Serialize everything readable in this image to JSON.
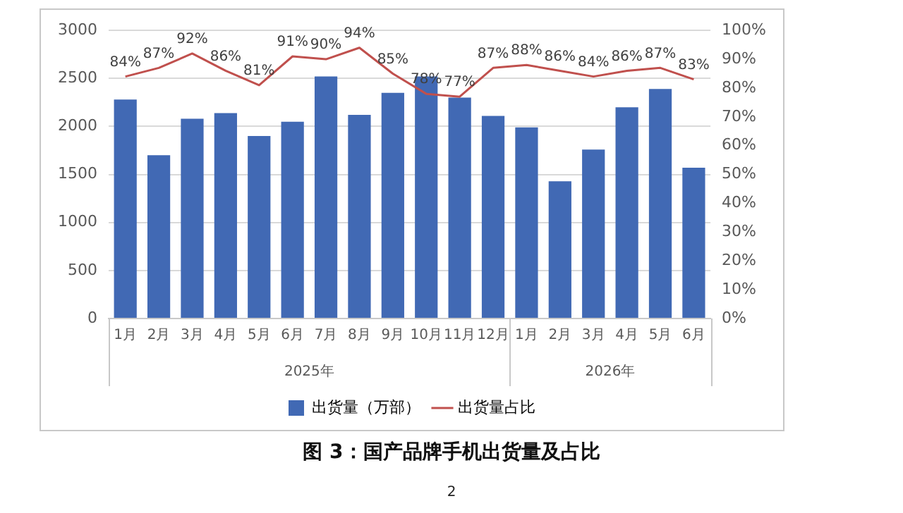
{
  "chart_data": {
    "type": "bar",
    "title": "图 3：国产品牌手机出货量及占比",
    "categories": [
      "1月",
      "2月",
      "3月",
      "4月",
      "5月",
      "6月",
      "7月",
      "8月",
      "9月",
      "10月",
      "11月",
      "12月",
      "1月",
      "2月",
      "3月",
      "4月",
      "5月",
      "6月"
    ],
    "series": [
      {
        "name": "出货量（万部）",
        "color": "#4169b4",
        "values": [
          2280,
          1700,
          2080,
          2140,
          1900,
          2050,
          2520,
          2120,
          2350,
          2520,
          2300,
          2110,
          1990,
          1430,
          1760,
          2200,
          2390,
          1570
        ]
      },
      {
        "name": "出货量占比",
        "type": "line",
        "axis": "y2",
        "color": "#c0504d",
        "values": [
          84,
          87,
          92,
          86,
          81,
          91,
          90,
          94,
          85,
          78,
          77,
          87,
          88,
          86,
          84,
          86,
          87,
          83
        ],
        "value_labels": [
          "84%",
          "87%",
          "92%",
          "86%",
          "81%",
          "91%",
          "90%",
          "94%",
          "85%",
          "78%",
          "77%",
          "87%",
          "88%",
          "86%",
          "84%",
          "86%",
          "87%",
          "83%"
        ]
      }
    ],
    "ylim": [
      0,
      3000
    ],
    "yticks": [
      0,
      500,
      1000,
      1500,
      2000,
      2500,
      3000
    ],
    "y2lim": [
      0,
      100
    ],
    "y2ticks": [
      {
        "value": 0,
        "label": "0%"
      },
      {
        "value": 10,
        "label": "10%"
      },
      {
        "value": 20,
        "label": "20%"
      },
      {
        "value": 30,
        "label": "30%"
      },
      {
        "value": 40,
        "label": "40%"
      },
      {
        "value": 50,
        "label": "50%"
      },
      {
        "value": 60,
        "label": "60%"
      },
      {
        "value": 70,
        "label": "70%"
      },
      {
        "value": 80,
        "label": "80%"
      },
      {
        "value": 90,
        "label": "90%"
      },
      {
        "value": 100,
        "label": "100%"
      }
    ],
    "grid": "y",
    "legend": "bottom",
    "marker": "none",
    "line_style": "solid",
    "annotations": [
      "2025年",
      "2026年",
      "2"
    ]
  }
}
